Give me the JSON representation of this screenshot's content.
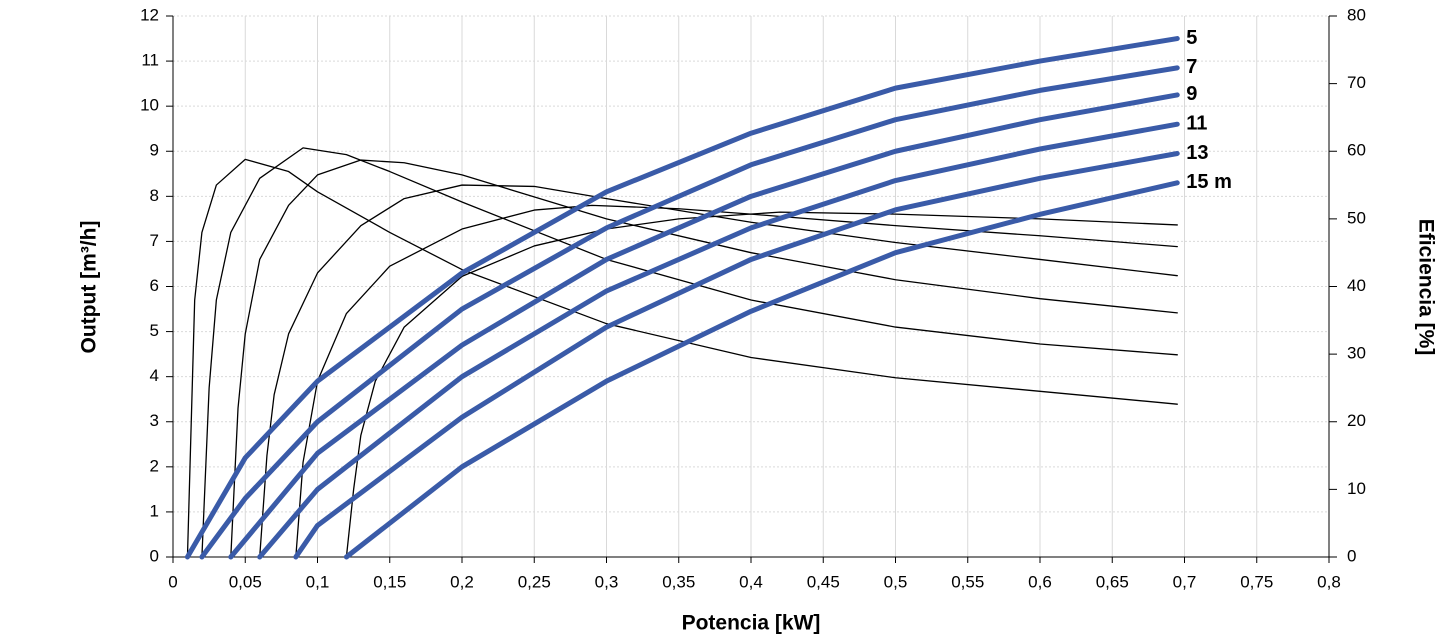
{
  "chart_data": {
    "type": "line",
    "xlabel": "Potencia [kW]",
    "ylabel": "Output [m³/h]",
    "y2label": "Eficiencia [%]",
    "xlim": [
      0,
      0.8
    ],
    "ylim": [
      0,
      12
    ],
    "y2lim": [
      0,
      80
    ],
    "grid": true,
    "xticks": [
      0,
      {
        "value": 0.05,
        "label": "0,05"
      },
      {
        "value": 0.1,
        "label": "0,1"
      },
      {
        "value": 0.15,
        "label": "0,15"
      },
      {
        "value": 0.2,
        "label": "0,2"
      },
      {
        "value": 0.25,
        "label": "0,25"
      },
      {
        "value": 0.3,
        "label": "0,3"
      },
      {
        "value": 0.35,
        "label": "0,35"
      },
      {
        "value": 0.4,
        "label": "0,4"
      },
      {
        "value": 0.45,
        "label": "0,45"
      },
      {
        "value": 0.5,
        "label": "0,5"
      },
      {
        "value": 0.55,
        "label": "0,55"
      },
      {
        "value": 0.6,
        "label": "0,6"
      },
      {
        "value": 0.65,
        "label": "0,65"
      },
      {
        "value": 0.7,
        "label": "0,7"
      },
      {
        "value": 0.75,
        "label": "0,75"
      },
      {
        "value": 0.8,
        "label": "0,8"
      }
    ],
    "yticks": [
      0,
      1,
      2,
      3,
      4,
      5,
      6,
      7,
      8,
      9,
      10,
      11,
      12
    ],
    "y2ticks": [
      0,
      10,
      20,
      30,
      40,
      50,
      60,
      70,
      80
    ],
    "series": [
      {
        "name": "5",
        "color": "#3a5ba8",
        "x": [
          0.01,
          0.05,
          0.1,
          0.2,
          0.3,
          0.4,
          0.5,
          0.6,
          0.695
        ],
        "values": [
          0,
          2.2,
          3.9,
          6.3,
          8.1,
          9.4,
          10.4,
          11.0,
          11.5
        ]
      },
      {
        "name": "7",
        "color": "#3a5ba8",
        "x": [
          0.02,
          0.05,
          0.1,
          0.2,
          0.3,
          0.4,
          0.5,
          0.6,
          0.695
        ],
        "values": [
          0,
          1.3,
          3.0,
          5.5,
          7.3,
          8.7,
          9.7,
          10.35,
          10.85
        ]
      },
      {
        "name": "9",
        "color": "#3a5ba8",
        "x": [
          0.04,
          0.1,
          0.2,
          0.3,
          0.4,
          0.5,
          0.6,
          0.695
        ],
        "values": [
          0,
          2.3,
          4.7,
          6.6,
          8.0,
          9.0,
          9.7,
          10.25
        ]
      },
      {
        "name": "11",
        "color": "#3a5ba8",
        "x": [
          0.06,
          0.1,
          0.2,
          0.3,
          0.4,
          0.5,
          0.6,
          0.695
        ],
        "values": [
          0,
          1.5,
          4.0,
          5.9,
          7.3,
          8.35,
          9.05,
          9.6
        ]
      },
      {
        "name": "13",
        "color": "#3a5ba8",
        "x": [
          0.085,
          0.1,
          0.2,
          0.3,
          0.4,
          0.5,
          0.6,
          0.695
        ],
        "values": [
          0,
          0.7,
          3.1,
          5.1,
          6.6,
          7.7,
          8.4,
          8.95
        ]
      },
      {
        "name": "15 m",
        "color": "#3a5ba8",
        "x": [
          0.12,
          0.2,
          0.3,
          0.4,
          0.5,
          0.6,
          0.695
        ],
        "values": [
          0,
          2.0,
          3.9,
          5.45,
          6.75,
          7.6,
          8.3
        ]
      },
      {
        "color": "#000000",
        "axis": "y2",
        "x": [
          0.01,
          0.015,
          0.02,
          0.03,
          0.05,
          0.08,
          0.1,
          0.15,
          0.2,
          0.3,
          0.4,
          0.5,
          0.6,
          0.695
        ],
        "values": [
          0,
          38,
          48,
          55,
          58.8,
          57,
          54,
          48,
          42.5,
          34.5,
          29.5,
          26.5,
          24.5,
          22.6
        ]
      },
      {
        "color": "#000000",
        "axis": "y2",
        "x": [
          0.02,
          0.025,
          0.03,
          0.04,
          0.06,
          0.09,
          0.12,
          0.15,
          0.2,
          0.3,
          0.4,
          0.5,
          0.6,
          0.695
        ],
        "values": [
          0,
          25,
          38,
          48,
          56,
          60.5,
          59.5,
          57,
          52.5,
          44,
          38,
          34,
          31.5,
          29.9
        ]
      },
      {
        "color": "#000000",
        "axis": "y2",
        "x": [
          0.04,
          0.045,
          0.05,
          0.06,
          0.08,
          0.1,
          0.13,
          0.16,
          0.2,
          0.3,
          0.4,
          0.5,
          0.6,
          0.695
        ],
        "values": [
          0,
          22,
          33,
          44,
          52,
          56.5,
          58.7,
          58.3,
          56.5,
          50,
          45,
          41,
          38.2,
          36.1
        ]
      },
      {
        "color": "#000000",
        "axis": "y2",
        "x": [
          0.06,
          0.065,
          0.07,
          0.08,
          0.1,
          0.13,
          0.16,
          0.2,
          0.25,
          0.3,
          0.4,
          0.5,
          0.6,
          0.695
        ],
        "values": [
          0,
          15,
          24,
          33,
          42,
          49,
          53,
          55,
          54.8,
          53,
          49.5,
          46.5,
          44,
          41.6
        ]
      },
      {
        "color": "#000000",
        "axis": "y2",
        "x": [
          0.085,
          0.09,
          0.1,
          0.12,
          0.15,
          0.2,
          0.25,
          0.29,
          0.35,
          0.4,
          0.5,
          0.6,
          0.695
        ],
        "values": [
          0,
          14,
          26,
          36,
          43,
          48.5,
          51.3,
          52,
          51.5,
          50.7,
          49,
          47.5,
          45.9
        ]
      },
      {
        "color": "#000000",
        "axis": "y2",
        "x": [
          0.12,
          0.125,
          0.13,
          0.14,
          0.16,
          0.2,
          0.25,
          0.3,
          0.35,
          0.42,
          0.5,
          0.6,
          0.695
        ],
        "values": [
          0,
          10,
          18,
          26,
          34,
          41.5,
          46,
          48.5,
          50,
          51,
          50.7,
          50,
          49.1
        ]
      }
    ]
  }
}
